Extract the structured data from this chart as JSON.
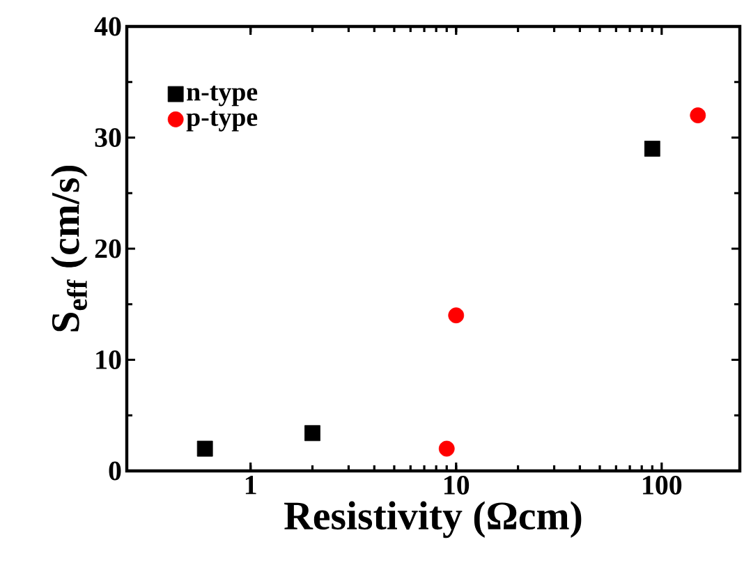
{
  "chart_data": {
    "type": "scatter",
    "xlabel": "Resistivity (Ωcm)",
    "ylabel": "S$_{eff}$ (cm/s)",
    "log": "x",
    "xlim": [
      0.25,
      240
    ],
    "ylim": [
      0,
      40
    ],
    "xticks": [
      1,
      10,
      100
    ],
    "yticks": [
      0,
      10,
      20,
      30,
      40
    ],
    "grid": false,
    "legend": "top left",
    "series": [
      {
        "name": "n-type",
        "color": "#000000",
        "marker": "square",
        "x": [
          0.6,
          2,
          90
        ],
        "values": [
          2,
          3.4,
          29
        ]
      },
      {
        "name": "p-type",
        "color": "#ff0000",
        "marker": "circle",
        "x": [
          9,
          10,
          150
        ],
        "values": [
          2,
          14,
          32
        ]
      }
    ]
  }
}
